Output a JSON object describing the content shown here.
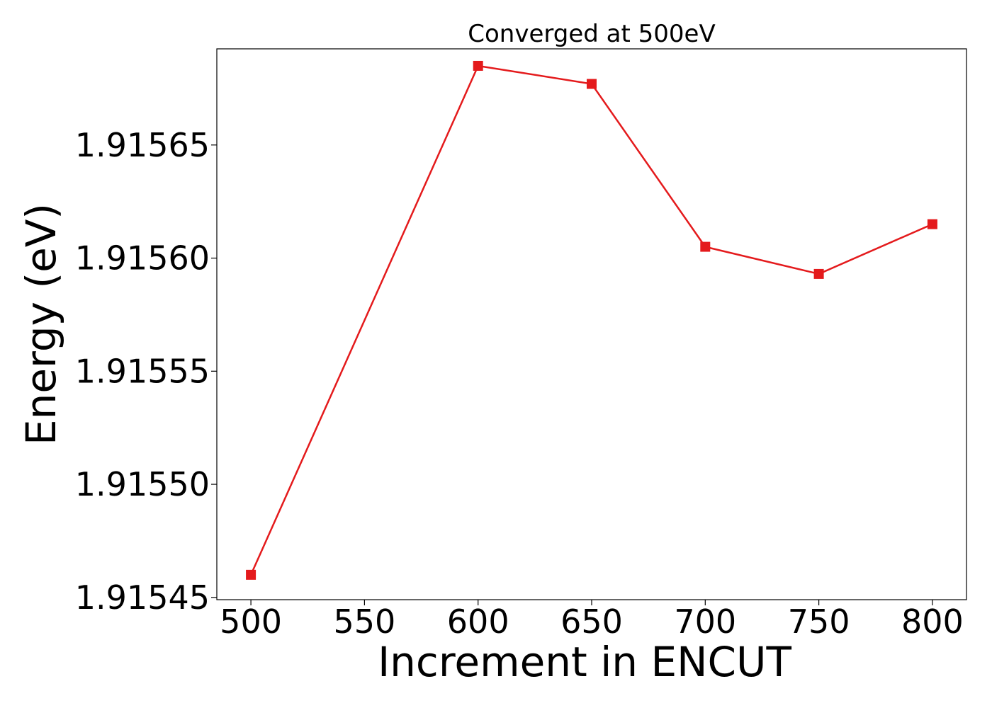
{
  "chart_data": {
    "type": "line",
    "title": "Converged at 500eV",
    "xlabel": "Increment in ENCUT",
    "ylabel": "Energy (eV)",
    "x": [
      500,
      600,
      650,
      700,
      750,
      800
    ],
    "series": [
      {
        "values": [
          1.91546,
          1.915685,
          1.915677,
          1.915605,
          1.915593,
          1.915615
        ],
        "color": "#e41a1c",
        "marker": "square"
      }
    ],
    "xticks": [
      500,
      550,
      600,
      650,
      700,
      750,
      800
    ],
    "xtick_labels": [
      "500",
      "550",
      "600",
      "650",
      "700",
      "750",
      "800"
    ],
    "yticks": [
      1.91545,
      1.9155,
      1.91555,
      1.9156,
      1.91565
    ],
    "ytick_labels": [
      "1.91545",
      "1.91550",
      "1.91555",
      "1.91560",
      "1.91565"
    ],
    "xlim": [
      485,
      815
    ],
    "ylim": [
      1.915449,
      1.9156925
    ],
    "grid": false,
    "legend": "none"
  }
}
